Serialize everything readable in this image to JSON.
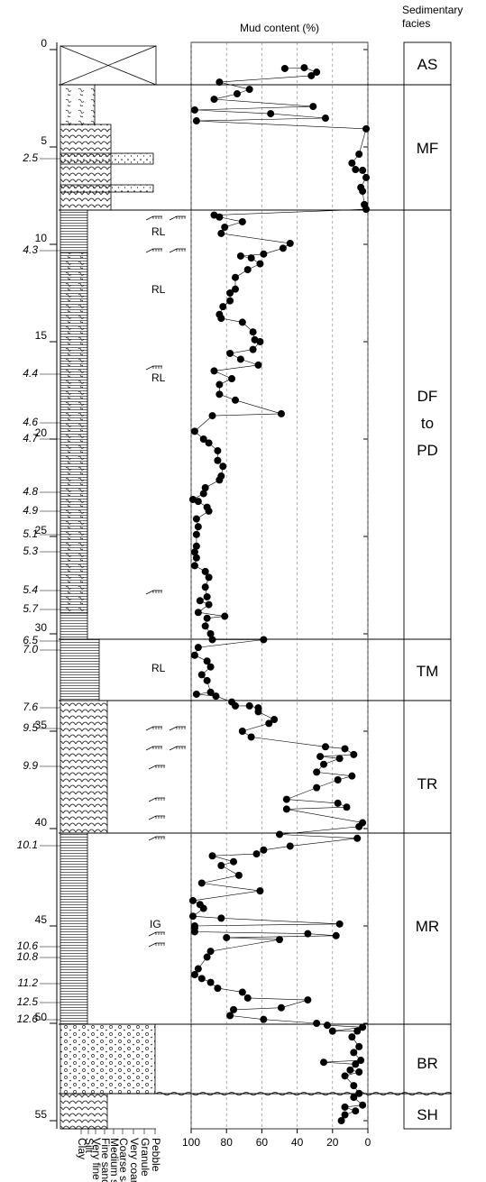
{
  "chart_data": {
    "type": "line",
    "title": "Mud content (%)",
    "facies_title": "Sedimentary facies",
    "facies": [
      "AS",
      "MF",
      "DF to PD",
      "TM",
      "TR",
      "MR",
      "BR",
      "SH"
    ],
    "ages": [
      "2.5",
      "4.3",
      "4.4",
      "4.6",
      "4.7",
      "4.8",
      "4.9",
      "5.1",
      "5.3",
      "5.4",
      "5.7",
      "6.5",
      "7.0",
      "7.6",
      "9.5",
      "9.9",
      "10.1",
      "10.6",
      "10.8",
      "11.2",
      "12.5",
      "12.6"
    ],
    "structure_labels": [
      "RL",
      "RL",
      "RL",
      "RL",
      "IG"
    ],
    "grain_sizes": [
      "Clay",
      "Silt",
      "Very fine sand",
      "Fine sand",
      "Medium sand",
      "Coarse sand",
      "Very coarse sand",
      "Granule",
      "Pebble"
    ],
    "color": "#000000",
    "grid": true,
    "xlim": [
      0,
      55
    ],
    "xticks": [
      0,
      5,
      10,
      15,
      20,
      25,
      30,
      35,
      40,
      45,
      50,
      55
    ],
    "ylim": [
      100,
      0
    ],
    "yticks": [
      100,
      80,
      60,
      40,
      20,
      0
    ],
    "x": [
      0.97,
      0.93,
      1.16,
      1.34,
      1.67,
      2.04,
      2.27,
      2.55,
      2.92,
      3.1,
      3.29,
      3.52,
      3.66,
      4.07,
      5.37,
      5.83,
      6.16,
      6.2,
      6.57,
      7.08,
      7.27,
      7.96,
      8.2,
      8.5,
      8.6,
      8.84,
      9.12,
      9.44,
      9.95,
      10.2,
      10.5,
      10.6,
      10.7,
      11.0,
      11.3,
      11.7,
      12.3,
      12.5,
      12.9,
      13.2,
      13.6,
      13.8,
      14.0,
      14.5,
      14.9,
      15.0,
      15.4,
      15.6,
      15.9,
      16.2,
      16.5,
      16.9,
      17.2,
      17.7,
      18.0,
      18.7,
      18.8,
      19.6,
      20.0,
      20.2,
      20.6,
      21.1,
      21.4,
      21.9,
      22.1,
      22.5,
      22.8,
      23.1,
      23.2,
      23.5,
      23.7,
      24.1,
      24.5,
      24.9,
      25.5,
      25.8,
      26.1,
      26.5,
      26.8,
      27.1,
      27.6,
      28.1,
      28.3,
      28.5,
      28.9,
      29.1,
      29.2,
      29.6,
      30.0,
      30.3,
      30.3,
      30.7,
      31.1,
      31.4,
      31.7,
      32.1,
      32.4,
      33.0,
      33.1,
      33.2,
      33.5,
      33.7,
      33.7,
      33.8,
      34.0,
      34.4,
      34.6,
      35.0,
      35.3,
      35.8,
      35.9,
      36.2,
      36.3,
      36.4,
      36.7,
      37.1,
      37.3,
      37.5,
      37.9,
      38.5,
      38.7,
      38.9,
      39.0,
      39.7,
      39.9,
      40.3,
      40.5,
      40.9,
      41.1,
      41.3,
      41.4,
      41.7,
      41.9,
      42.4,
      42.8,
      43.2,
      43.7,
      43.9,
      44.1,
      44.5,
      44.6,
      44.9,
      45.0,
      45.1,
      45.3,
      45.4,
      45.5,
      45.6,
      45.7,
      46.3,
      46.6,
      47.2,
      47.5,
      47.7,
      47.9,
      48.2,
      48.4,
      48.7,
      48.8,
      49.2,
      49.3,
      49.6,
      49.8,
      50.0,
      50.1,
      50.2,
      50.4,
      50.4,
      50.7,
      51.2,
      51.5,
      51.9,
      52.0,
      52.1,
      52.4,
      52.5,
      52.7,
      53.2,
      53.6,
      53.8,
      54.2,
      54.3,
      54.5,
      54.7,
      55.0
    ],
    "values": [
      47,
      36,
      29,
      32,
      84,
      67,
      74,
      87,
      31,
      98,
      55,
      24,
      97,
      1,
      5,
      9,
      7,
      3,
      1,
      4,
      3,
      2,
      1,
      87,
      84,
      71,
      81,
      83,
      44,
      48,
      59,
      72,
      66,
      61,
      68,
      75,
      75,
      78,
      78,
      82,
      84,
      83,
      71,
      65,
      64,
      61,
      65,
      78,
      72,
      62,
      87,
      77,
      84,
      84,
      75,
      49,
      88,
      98,
      93,
      90,
      85,
      85,
      82,
      83,
      84,
      92,
      93,
      99,
      96,
      91,
      90,
      97,
      96,
      97,
      97,
      98,
      97,
      98,
      92,
      90,
      92,
      91,
      95,
      90,
      96,
      81,
      91,
      92,
      89,
      88,
      59,
      96,
      98,
      91,
      89,
      94,
      91,
      89,
      97,
      86,
      77,
      75,
      67,
      62,
      62,
      53,
      56,
      71,
      66,
      24,
      13,
      8,
      27,
      16,
      25,
      29,
      9,
      17,
      29,
      46,
      17,
      12,
      46,
      3,
      5,
      50,
      6,
      44,
      59,
      63,
      88,
      76,
      83,
      73,
      94,
      61,
      99,
      95,
      93,
      99,
      83,
      16,
      98,
      98,
      98,
      34,
      18,
      80,
      50,
      89,
      91,
      96,
      98,
      94,
      89,
      85,
      71,
      68,
      34,
      49,
      76,
      78,
      59,
      29,
      23,
      3,
      20,
      6,
      9,
      5,
      8,
      4,
      25,
      7,
      10,
      5,
      13,
      8,
      5,
      8,
      3,
      13,
      7,
      13,
      15
    ]
  }
}
